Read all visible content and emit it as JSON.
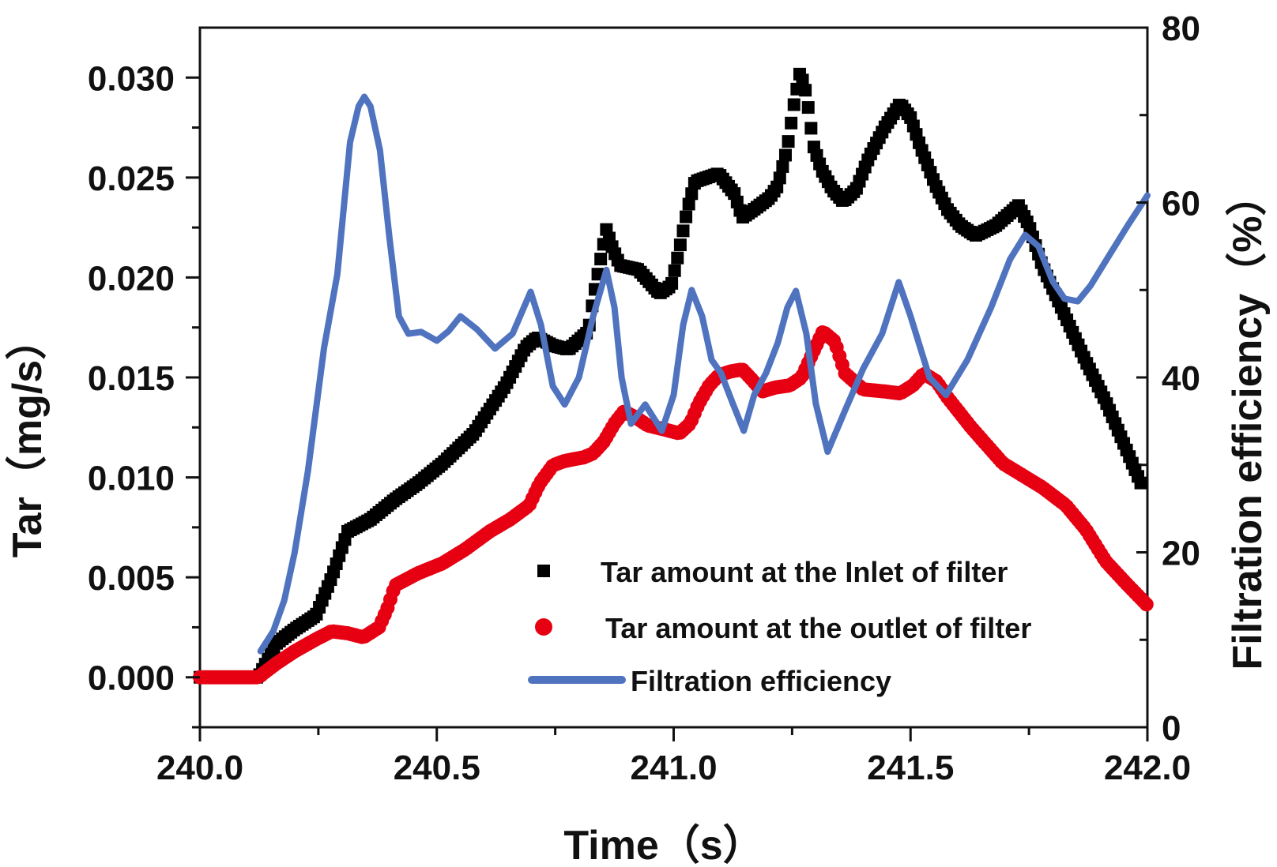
{
  "chart_data": {
    "type": "line",
    "title": "",
    "xlabel": "Time（s）",
    "ylabel": "Tar（mg/s）",
    "y2label": "Filtration efficiency（%）",
    "xlim": [
      240.0,
      242.0
    ],
    "ylim": [
      -0.0025,
      0.0325
    ],
    "y2lim": [
      0,
      80
    ],
    "xticks": [
      "240.0",
      "240.5",
      "241.0",
      "241.5",
      "242.0"
    ],
    "xtick_values": [
      240.0,
      240.5,
      241.0,
      241.5,
      242.0
    ],
    "yticks": [
      "0.000",
      "0.005",
      "0.010",
      "0.015",
      "0.020",
      "0.025",
      "0.030"
    ],
    "ytick_values": [
      0.0,
      0.005,
      0.01,
      0.015,
      0.02,
      0.025,
      0.03
    ],
    "y2ticks": [
      "0",
      "20",
      "40",
      "60",
      "80"
    ],
    "y2tick_values": [
      0,
      20,
      40,
      60,
      80
    ],
    "grid": false,
    "legend_position": "bottom-center",
    "series": [
      {
        "name": "Tar amount at the Inlet of filter",
        "axis": "left",
        "marker": "square",
        "color": "#000000",
        "x": [
          240.0,
          240.05,
          240.123,
          240.162,
          240.2,
          240.245,
          240.278,
          240.312,
          240.36,
          240.412,
          240.46,
          240.512,
          240.578,
          240.645,
          240.687,
          240.712,
          240.745,
          240.778,
          240.82,
          240.83,
          240.845,
          240.858,
          240.872,
          240.887,
          240.925,
          240.97,
          240.995,
          241.012,
          241.03,
          241.045,
          241.07,
          241.095,
          241.128,
          241.145,
          241.175,
          241.203,
          241.22,
          241.24,
          241.255,
          241.267,
          241.28,
          241.295,
          241.312,
          241.335,
          241.358,
          241.385,
          241.412,
          241.445,
          241.478,
          241.5,
          241.52,
          241.553,
          241.578,
          241.605,
          241.637,
          241.68,
          241.728,
          241.75,
          241.778,
          241.82,
          241.87,
          241.912,
          241.95,
          241.99
        ],
        "y": [
          0.0,
          0.0,
          0.0,
          0.0017,
          0.0024,
          0.0031,
          0.005,
          0.0073,
          0.0079,
          0.0089,
          0.0097,
          0.0107,
          0.0122,
          0.0146,
          0.0165,
          0.017,
          0.0166,
          0.0164,
          0.0173,
          0.0189,
          0.0208,
          0.0224,
          0.0214,
          0.0206,
          0.0204,
          0.0192,
          0.0196,
          0.0214,
          0.0235,
          0.0248,
          0.025,
          0.0252,
          0.0242,
          0.023,
          0.0235,
          0.024,
          0.0246,
          0.0265,
          0.0288,
          0.0303,
          0.0292,
          0.0266,
          0.0254,
          0.0244,
          0.0238,
          0.0244,
          0.026,
          0.0275,
          0.0287,
          0.028,
          0.0266,
          0.0246,
          0.0234,
          0.0226,
          0.0221,
          0.0226,
          0.0236,
          0.0226,
          0.0206,
          0.0184,
          0.0158,
          0.0138,
          0.0117,
          0.0095
        ]
      },
      {
        "name": "Tar amount at the outlet of filter",
        "axis": "left",
        "marker": "circle",
        "color": "#e60012",
        "x": [
          240.0,
          240.05,
          240.123,
          240.162,
          240.2,
          240.245,
          240.278,
          240.312,
          240.345,
          240.378,
          240.395,
          240.412,
          240.46,
          240.512,
          240.56,
          240.612,
          240.655,
          240.695,
          240.717,
          240.745,
          240.767,
          240.787,
          240.81,
          240.83,
          240.853,
          240.875,
          240.895,
          240.92,
          240.945,
          240.98,
          241.012,
          241.035,
          241.053,
          241.075,
          241.095,
          241.12,
          241.145,
          241.165,
          241.187,
          241.215,
          241.245,
          241.27,
          241.295,
          241.315,
          241.34,
          241.362,
          241.4,
          241.445,
          241.478,
          241.505,
          241.528,
          241.555,
          241.578,
          241.628,
          241.695,
          241.778,
          241.828,
          241.87,
          241.912,
          241.955,
          242.0
        ],
        "y": [
          0.0,
          0.0,
          0.0,
          0.0007,
          0.0013,
          0.0019,
          0.0023,
          0.0022,
          0.002,
          0.0025,
          0.0034,
          0.0046,
          0.0052,
          0.0057,
          0.0064,
          0.0073,
          0.0079,
          0.0086,
          0.0097,
          0.0106,
          0.0108,
          0.0109,
          0.011,
          0.0112,
          0.0118,
          0.0127,
          0.0133,
          0.013,
          0.0126,
          0.0124,
          0.0122,
          0.0127,
          0.0137,
          0.0146,
          0.0151,
          0.0153,
          0.0154,
          0.0149,
          0.0143,
          0.0145,
          0.0146,
          0.015,
          0.0163,
          0.0173,
          0.0168,
          0.0152,
          0.0144,
          0.0143,
          0.0142,
          0.0146,
          0.0152,
          0.0148,
          0.014,
          0.0125,
          0.0107,
          0.0095,
          0.0086,
          0.0074,
          0.0058,
          0.0047,
          0.0036
        ]
      },
      {
        "name": "Filtration efficiency",
        "axis": "right",
        "marker": "line",
        "color": "#4f73bf",
        "x": [
          240.128,
          240.155,
          240.178,
          240.2,
          240.228,
          240.262,
          240.29,
          240.317,
          240.335,
          240.347,
          240.36,
          240.38,
          240.4,
          240.42,
          240.44,
          240.467,
          240.5,
          240.525,
          240.55,
          240.585,
          240.623,
          240.66,
          240.698,
          240.72,
          240.745,
          240.77,
          240.8,
          240.83,
          240.858,
          240.875,
          240.89,
          240.91,
          240.94,
          240.975,
          241.0,
          241.02,
          241.038,
          241.06,
          241.08,
          241.1,
          241.125,
          241.148,
          241.17,
          241.195,
          241.22,
          241.24,
          241.258,
          241.28,
          241.3,
          241.325,
          241.36,
          241.4,
          241.44,
          241.475,
          241.5,
          241.54,
          241.575,
          241.62,
          241.67,
          241.71,
          241.742,
          241.77,
          241.8,
          241.825,
          241.853,
          241.88,
          241.92,
          241.96,
          242.0
        ],
        "y": [
          8.7,
          11.0,
          14.5,
          20.0,
          29.3,
          43.4,
          51.8,
          66.9,
          71.0,
          72.1,
          71.0,
          66.0,
          56.0,
          47.0,
          45.0,
          45.2,
          44.2,
          45.3,
          47.0,
          45.5,
          43.3,
          45.0,
          49.8,
          46.0,
          39.0,
          36.9,
          40.0,
          47.0,
          52.3,
          48.0,
          40.0,
          34.7,
          36.9,
          33.9,
          38.0,
          46.0,
          50.0,
          47.0,
          42.0,
          40.5,
          37.0,
          33.9,
          38.0,
          40.5,
          44.0,
          48.0,
          49.9,
          45.0,
          37.0,
          31.5,
          36.0,
          41.0,
          45.0,
          50.9,
          47.0,
          40.0,
          38.0,
          42.0,
          48.0,
          53.5,
          56.3,
          55.0,
          51.0,
          49.0,
          48.7,
          50.5,
          54.0,
          57.5,
          60.8
        ]
      }
    ]
  },
  "legend": {
    "items": [
      {
        "label": "Tar amount at the Inlet of filter",
        "marker": "square",
        "color": "#000000"
      },
      {
        "label": "Tar amount at the outlet of filter",
        "marker": "circle",
        "color": "#e60012"
      },
      {
        "label": "Filtration efficiency",
        "marker": "line",
        "color": "#4f73bf"
      }
    ]
  }
}
